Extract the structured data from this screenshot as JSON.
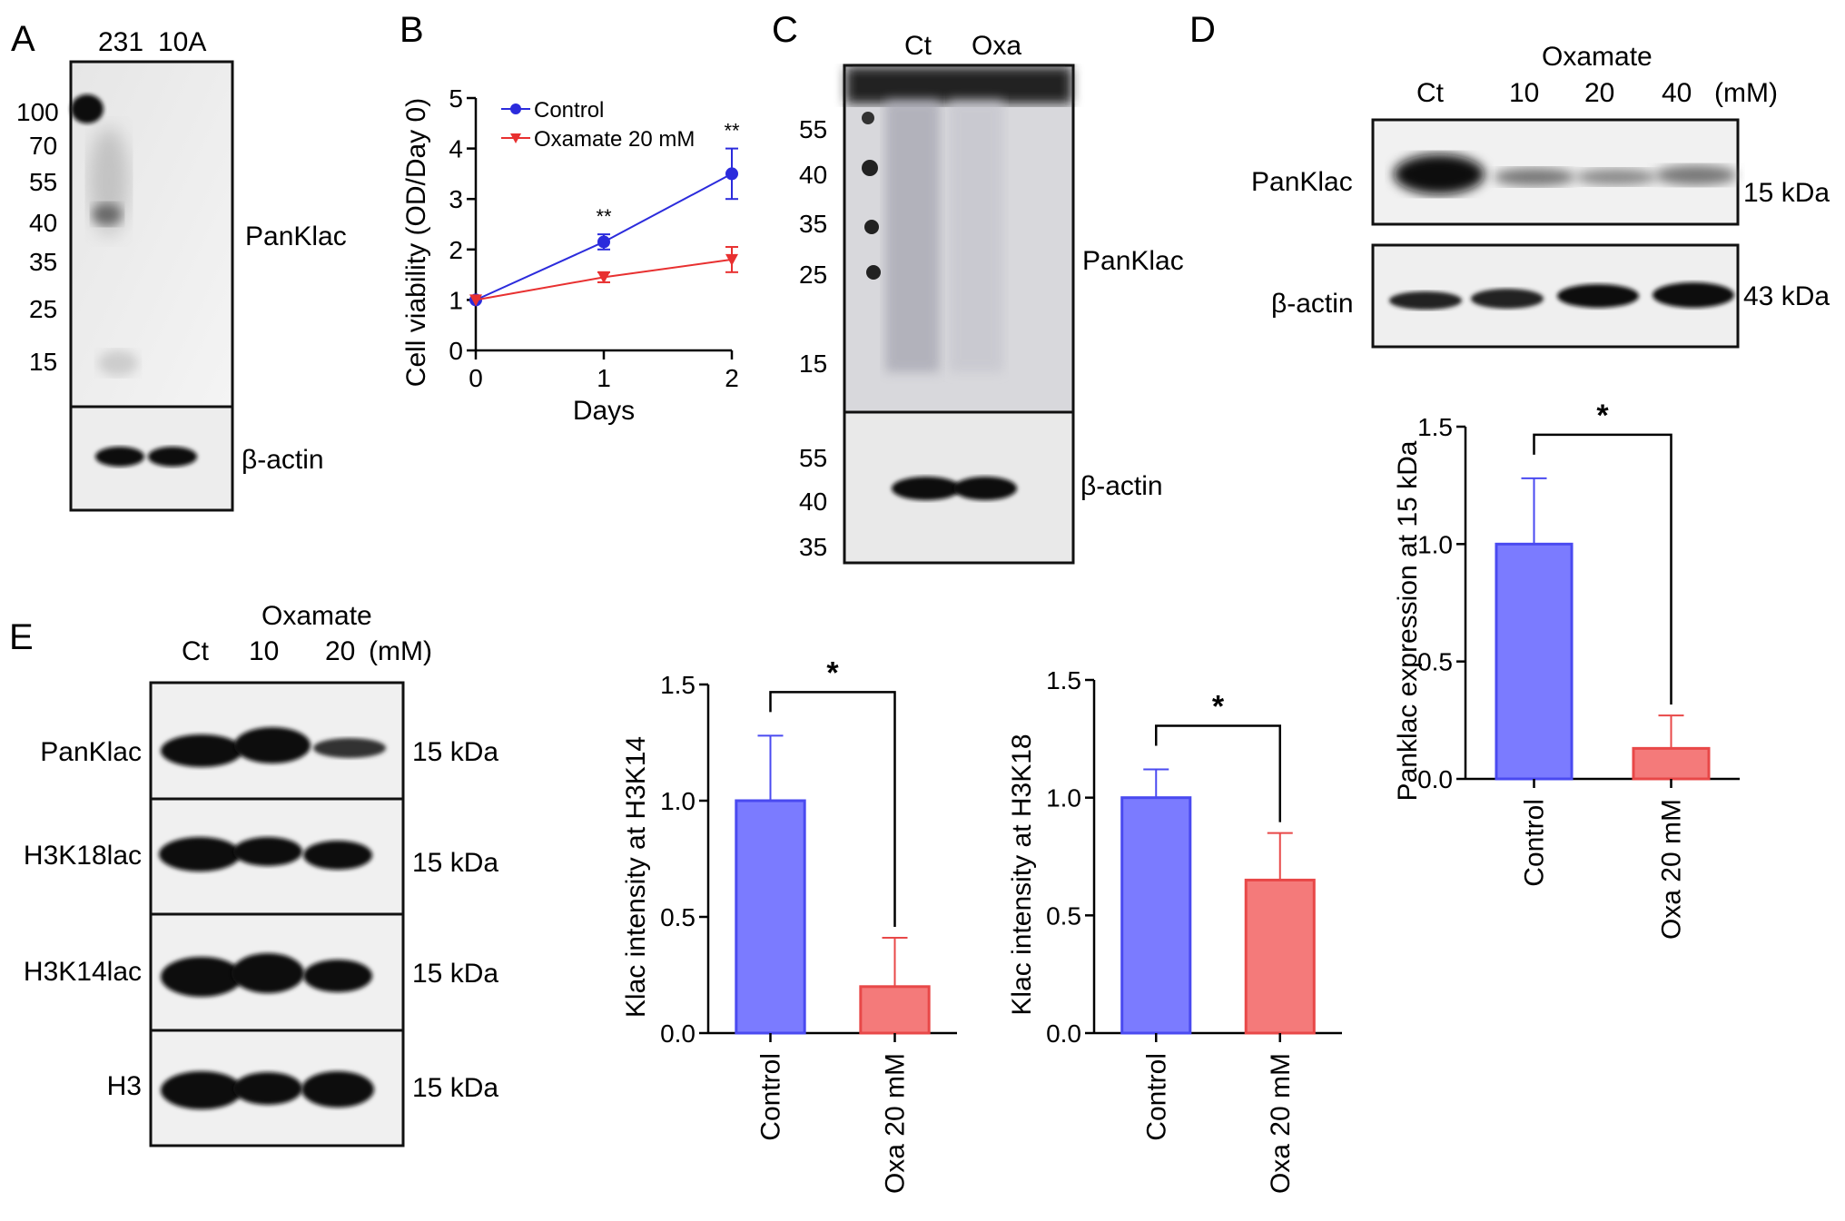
{
  "panel_labels": [
    "A",
    "B",
    "C",
    "D",
    "E"
  ],
  "panelA": {
    "lanes": [
      "231",
      "10A"
    ],
    "markers": [
      "100",
      "70",
      "55",
      "40",
      "35",
      "25",
      "15"
    ],
    "blot_labels": [
      "PanKlac",
      "β-actin"
    ]
  },
  "panelC": {
    "lanes": [
      "Ct",
      "Oxa"
    ],
    "markers_top": [
      "55",
      "40",
      "35",
      "25",
      "15"
    ],
    "markers_bottom": [
      "55",
      "40",
      "35"
    ],
    "blot_labels": [
      "PanKlac",
      "β-actin"
    ]
  },
  "panelD": {
    "treatment": "Oxamate",
    "lanes": [
      "Ct",
      "10",
      "20",
      "40"
    ],
    "unit": "(mM)",
    "blot_labels": [
      "PanKlac",
      "β-actin"
    ],
    "sizes": [
      "15 kDa",
      "43 kDa"
    ]
  },
  "panelE": {
    "treatment": "Oxamate",
    "lanes": [
      "Ct",
      "10",
      "20"
    ],
    "unit": "(mM)",
    "blot_labels": [
      "PanKlac",
      "H3K18lac",
      "H3K14lac",
      "H3"
    ],
    "sizes": [
      "15 kDa",
      "15 kDa",
      "15 kDa",
      "15 kDa"
    ]
  },
  "colors": {
    "control": "#7b7bff",
    "control_edge": "#4a4af0",
    "oxa": "#f47a7a",
    "oxa_edge": "#e84848",
    "line_control": "#2b2bdc",
    "line_oxa": "#e83030"
  },
  "chart_data": [
    {
      "id": "B",
      "type": "line",
      "x": [
        0,
        1,
        2
      ],
      "series": [
        {
          "name": "Control",
          "values": [
            1,
            2.15,
            3.5
          ],
          "errors": [
            0.05,
            0.15,
            0.5
          ],
          "sig": [
            "",
            "**",
            "**"
          ]
        },
        {
          "name": "Oxamate 20 mM",
          "values": [
            1,
            1.45,
            1.8
          ],
          "errors": [
            0.05,
            0.1,
            0.25
          ]
        }
      ],
      "xlabel": "Days",
      "ylabel": "Cell viability (OD/Day 0)",
      "xticks": [
        "0",
        "1",
        "2"
      ],
      "yticks": [
        "0",
        "1",
        "2",
        "3",
        "4",
        "5"
      ],
      "xlim": [
        0,
        2
      ],
      "ylim": [
        0,
        5
      ],
      "legend": "top-left"
    },
    {
      "id": "D",
      "type": "bar",
      "categories": [
        "Control",
        "Oxa 20 mM"
      ],
      "values": [
        1.0,
        0.13
      ],
      "errors": [
        0.28,
        0.14
      ],
      "ylabel": "Panklac expression at 15 kDa",
      "yticks": [
        "0.0",
        "0.5",
        "1.0",
        "1.5"
      ],
      "ylim": [
        0,
        1.5
      ],
      "sig": "*"
    },
    {
      "id": "E1",
      "type": "bar",
      "categories": [
        "Control",
        "Oxa 20 mM"
      ],
      "values": [
        1.0,
        0.2
      ],
      "errors": [
        0.28,
        0.21
      ],
      "ylabel": "Klac intensity at H3K14",
      "yticks": [
        "0.0",
        "0.5",
        "1.0",
        "1.5"
      ],
      "ylim": [
        0,
        1.5
      ],
      "sig": "*"
    },
    {
      "id": "E2",
      "type": "bar",
      "categories": [
        "Control",
        "Oxa 20 mM"
      ],
      "values": [
        1.0,
        0.65
      ],
      "errors": [
        0.12,
        0.2
      ],
      "ylabel": "Klac intensity at H3K18",
      "yticks": [
        "0.0",
        "0.5",
        "1.0",
        "1.5"
      ],
      "ylim": [
        0,
        1.5
      ],
      "sig": "*"
    }
  ]
}
